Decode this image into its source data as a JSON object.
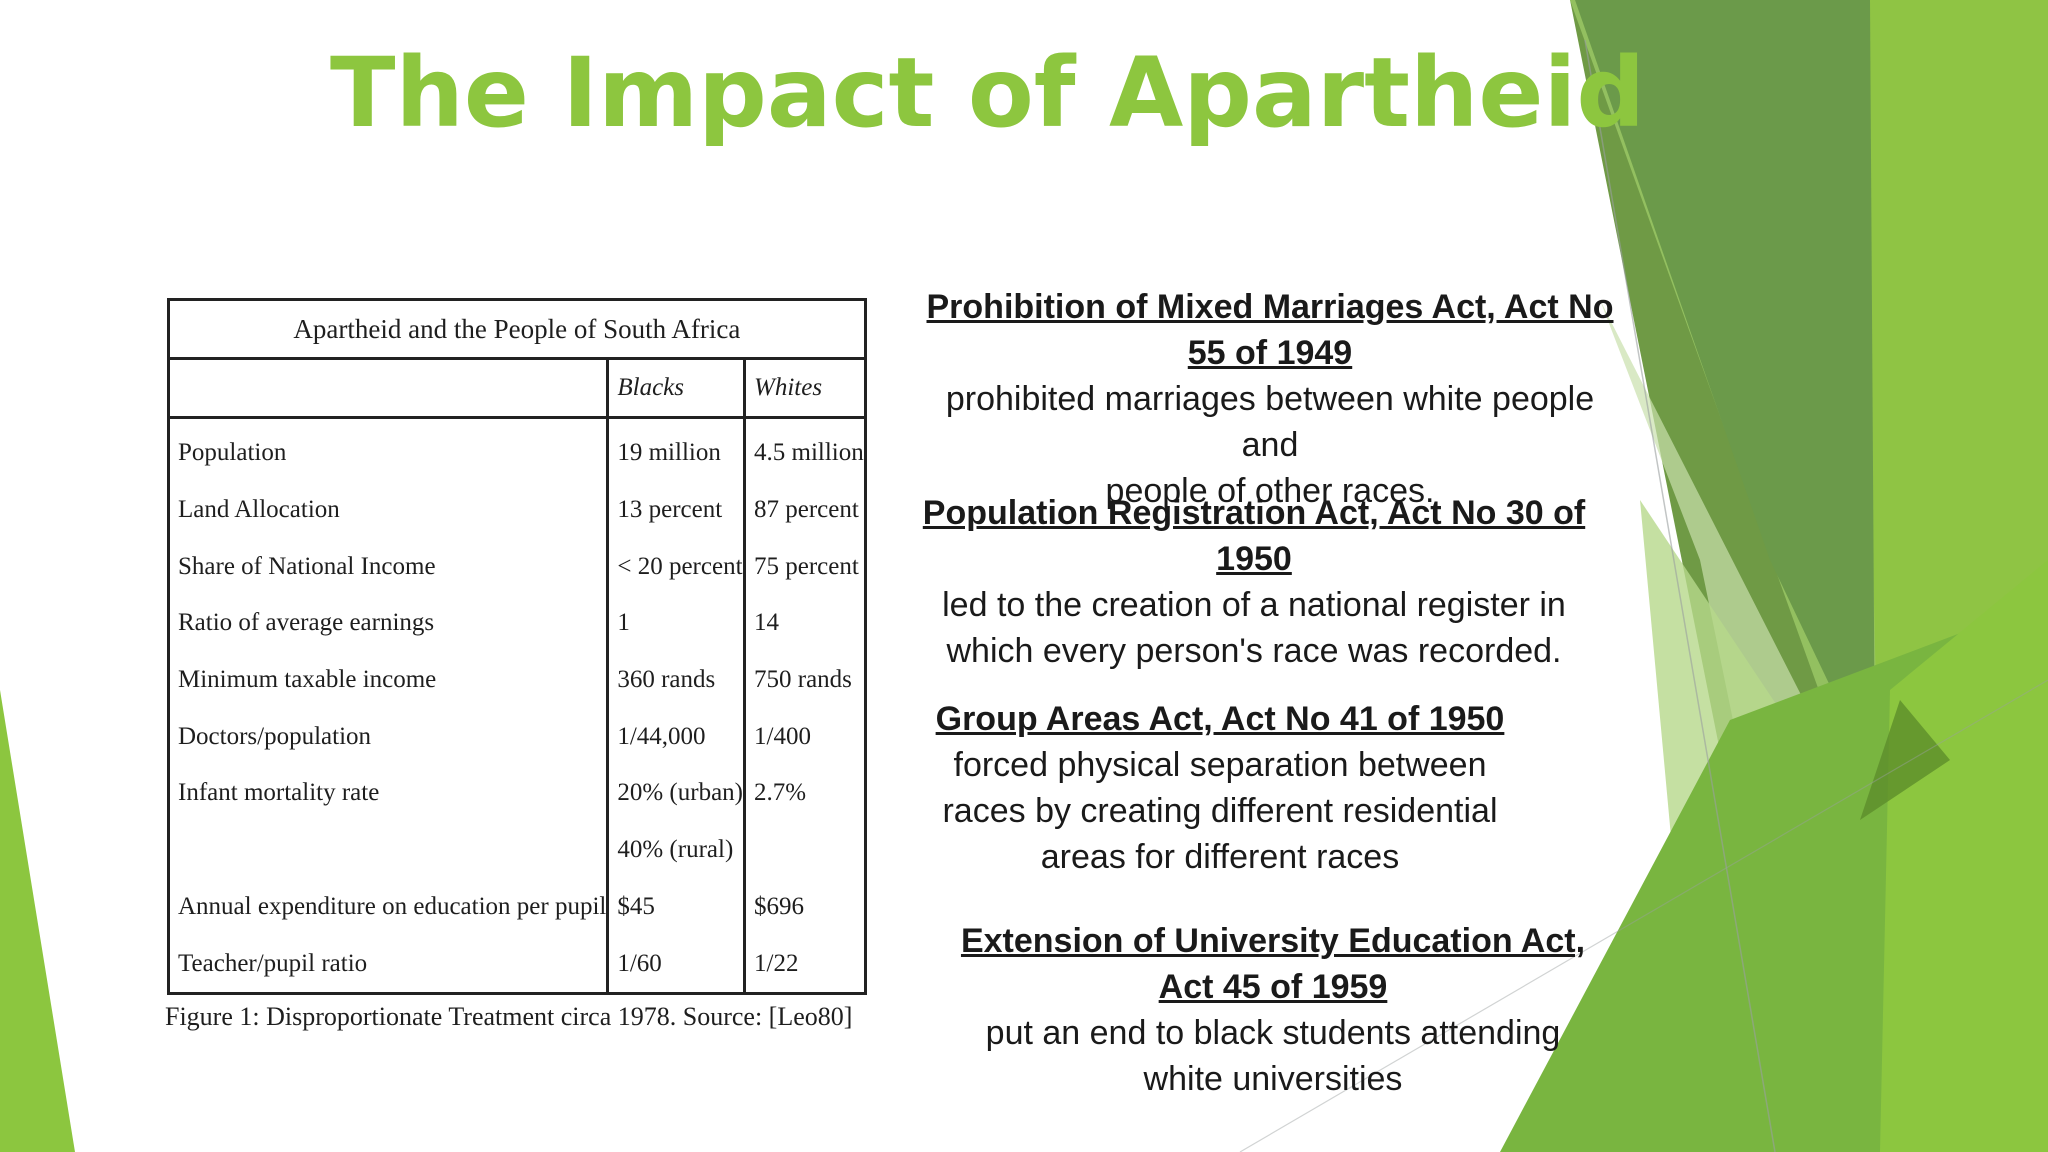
{
  "slide": {
    "title": "The Impact of Apartheid",
    "accent_color": "#8dc63f"
  },
  "table": {
    "caption": "Apartheid and the People of South Africa",
    "columns": [
      "",
      "Blacks",
      "Whites"
    ],
    "rows": [
      {
        "label": "Population",
        "blacks": "19 million",
        "whites": "4.5 million"
      },
      {
        "label": "Land Allocation",
        "blacks": "13 percent",
        "whites": "87 percent"
      },
      {
        "label": "Share of National Income",
        "blacks": "< 20 percent",
        "whites": "75 percent"
      },
      {
        "label": "Ratio of average earnings",
        "blacks": "1",
        "whites": "14"
      },
      {
        "label": "Minimum taxable income",
        "blacks": "360 rands",
        "whites": "750 rands"
      },
      {
        "label": "Doctors/population",
        "blacks": "1/44,000",
        "whites": "1/400"
      },
      {
        "label": "Infant mortality rate",
        "blacks": "20% (urban)",
        "whites": "2.7%"
      },
      {
        "label": "",
        "blacks": "40% (rural)",
        "whites": ""
      },
      {
        "label": "Annual expenditure on education per pupil",
        "blacks": "$45",
        "whites": "$696"
      },
      {
        "label": "Teacher/pupil ratio",
        "blacks": "1/60",
        "whites": "1/22"
      }
    ],
    "figure_caption": "Figure 1: Disproportionate Treatment circa 1978. Source: [Leo80]"
  },
  "acts": [
    {
      "title_lines": [
        "Prohibition of Mixed Marriages Act, Act No",
        "55 of 1949"
      ],
      "desc_lines": [
        "prohibited marriages between white people and",
        "people of other races."
      ]
    },
    {
      "title_lines": [
        "Population Registration Act, Act No 30 of",
        "1950"
      ],
      "desc_lines": [
        "led to the creation of a national register in",
        "which every person's race was recorded."
      ]
    },
    {
      "title_lines": [
        "Group Areas Act, Act No 41 of 1950"
      ],
      "desc_lines": [
        "forced physical separation between",
        "races by creating different residential",
        "areas for different races"
      ]
    },
    {
      "title_lines": [
        "Extension of University Education Act,",
        "Act 45 of 1959"
      ],
      "desc_lines": [
        "put an end to black students attending",
        "white universities"
      ]
    }
  ]
}
